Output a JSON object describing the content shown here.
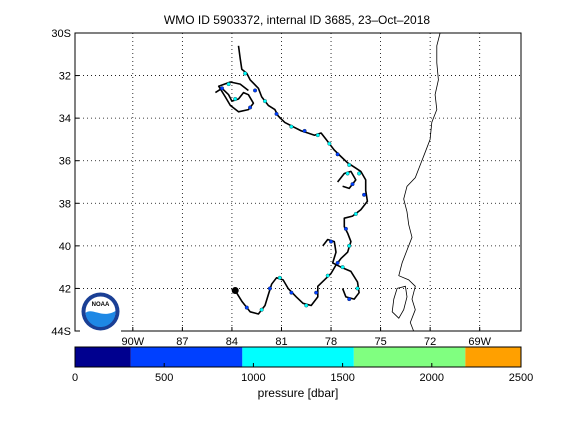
{
  "chart_data": {
    "type": "scatter",
    "title": "WMO ID 5903372, internal ID 3685, 23–Oct–2018",
    "x_range_lon": [
      -93.5,
      -66.5
    ],
    "y_range_lat": [
      -44,
      -30
    ],
    "grid": true,
    "grid_style": "dotted",
    "x_ticks": [
      {
        "value": -90,
        "label": "90W"
      },
      {
        "value": -87,
        "label": "87"
      },
      {
        "value": -84,
        "label": "84"
      },
      {
        "value": -81,
        "label": "81"
      },
      {
        "value": -78,
        "label": "78"
      },
      {
        "value": -75,
        "label": "75"
      },
      {
        "value": -72,
        "label": "72"
      },
      {
        "value": -69,
        "label": "69W"
      }
    ],
    "y_ticks": [
      {
        "value": -30,
        "label": "30S"
      },
      {
        "value": -32,
        "label": "32"
      },
      {
        "value": -34,
        "label": "34"
      },
      {
        "value": -36,
        "label": "36"
      },
      {
        "value": -38,
        "label": "38"
      },
      {
        "value": -40,
        "label": "40"
      },
      {
        "value": -42,
        "label": "42"
      },
      {
        "value": -44,
        "label": "44S"
      }
    ],
    "colorbar": {
      "label": "pressure [dbar]",
      "range": [
        0,
        2500
      ],
      "ticks": [
        0,
        500,
        1000,
        1500,
        2000,
        2500
      ],
      "bins": [
        {
          "from": 0,
          "to": 313,
          "color": "#00008f"
        },
        {
          "from": 313,
          "to": 938,
          "color": "#0040ff"
        },
        {
          "from": 938,
          "to": 1563,
          "color": "#00ffff"
        },
        {
          "from": 1563,
          "to": 2188,
          "color": "#80ff80"
        },
        {
          "from": 2188,
          "to": 2500,
          "color": "#ffa000"
        }
      ]
    },
    "series": [
      {
        "track_lon_lat": [
          [
            -83.6,
            -30.6
          ],
          [
            -83.5,
            -31.2
          ],
          [
            -83.4,
            -31.7
          ],
          [
            -83.1,
            -31.9
          ],
          [
            -82.9,
            -32.2
          ],
          [
            -82.4,
            -32.6
          ],
          [
            -82.2,
            -33.0
          ],
          [
            -81.8,
            -33.4
          ],
          [
            -81.4,
            -33.6
          ],
          [
            -81.2,
            -33.9
          ],
          [
            -80.8,
            -34.2
          ],
          [
            -80.3,
            -34.4
          ],
          [
            -79.8,
            -34.6
          ],
          [
            -79.4,
            -34.7
          ],
          [
            -79.0,
            -34.8
          ],
          [
            -78.6,
            -34.7
          ],
          [
            -78.3,
            -35.0
          ],
          [
            -78.0,
            -35.3
          ],
          [
            -77.8,
            -35.5
          ],
          [
            -77.4,
            -35.8
          ],
          [
            -77.0,
            -36.1
          ],
          [
            -76.6,
            -36.3
          ],
          [
            -76.2,
            -36.5
          ],
          [
            -75.9,
            -36.9
          ],
          [
            -75.9,
            -37.4
          ],
          [
            -75.8,
            -37.9
          ],
          [
            -76.2,
            -38.3
          ],
          [
            -76.7,
            -38.6
          ],
          [
            -77.2,
            -38.7
          ],
          [
            -77.2,
            -39.1
          ],
          [
            -77.0,
            -39.4
          ],
          [
            -76.8,
            -39.8
          ],
          [
            -77.0,
            -40.3
          ],
          [
            -77.4,
            -40.6
          ],
          [
            -77.7,
            -40.9
          ],
          [
            -78.0,
            -41.3
          ],
          [
            -78.4,
            -41.6
          ],
          [
            -78.8,
            -41.9
          ],
          [
            -78.8,
            -42.4
          ],
          [
            -79.2,
            -42.8
          ],
          [
            -79.7,
            -42.7
          ],
          [
            -80.1,
            -42.4
          ],
          [
            -80.6,
            -42.0
          ],
          [
            -80.9,
            -41.6
          ],
          [
            -81.3,
            -41.5
          ],
          [
            -81.6,
            -41.8
          ],
          [
            -81.8,
            -42.3
          ],
          [
            -82.0,
            -42.8
          ],
          [
            -82.4,
            -43.2
          ],
          [
            -82.9,
            -43.1
          ],
          [
            -83.4,
            -42.6
          ],
          [
            -83.8,
            -42.1
          ]
        ],
        "track_color": "#000000",
        "last_position": [
          -83.8,
          -42.1
        ]
      },
      {
        "track_lon_lat": [
          [
            -85.0,
            -32.8
          ],
          [
            -84.6,
            -32.6
          ],
          [
            -84.2,
            -32.9
          ],
          [
            -84.0,
            -33.2
          ],
          [
            -83.6,
            -33.1
          ],
          [
            -83.3,
            -32.8
          ],
          [
            -83.0,
            -32.9
          ],
          [
            -82.7,
            -33.3
          ],
          [
            -83.0,
            -33.6
          ],
          [
            -83.6,
            -33.7
          ],
          [
            -84.1,
            -33.4
          ],
          [
            -84.4,
            -33.0
          ],
          [
            -84.8,
            -32.5
          ],
          [
            -84.1,
            -32.3
          ],
          [
            -83.5,
            -32.4
          ],
          [
            -83.0,
            -32.7
          ]
        ],
        "track_color": "#000000"
      },
      {
        "track_lon_lat": [
          [
            -77.6,
            -37.0
          ],
          [
            -77.2,
            -36.6
          ],
          [
            -76.8,
            -36.5
          ],
          [
            -76.5,
            -36.9
          ],
          [
            -76.9,
            -37.3
          ],
          [
            -77.3,
            -37.2
          ]
        ],
        "track_color": "#000000"
      },
      {
        "track_lon_lat": [
          [
            -78.5,
            -40.0
          ],
          [
            -78.2,
            -39.7
          ],
          [
            -77.8,
            -39.8
          ],
          [
            -77.7,
            -40.3
          ],
          [
            -77.9,
            -40.8
          ],
          [
            -77.4,
            -41.0
          ],
          [
            -76.8,
            -41.2
          ],
          [
            -76.4,
            -41.7
          ],
          [
            -76.3,
            -42.2
          ],
          [
            -76.6,
            -42.5
          ],
          [
            -77.1,
            -42.4
          ],
          [
            -77.3,
            -42.0
          ]
        ],
        "track_color": "#000000"
      }
    ],
    "profile_points": [
      {
        "lon": -83.2,
        "lat": -31.9,
        "bin": 2
      },
      {
        "lon": -82.6,
        "lat": -32.7,
        "bin": 1
      },
      {
        "lon": -82.0,
        "lat": -33.2,
        "bin": 2
      },
      {
        "lon": -81.3,
        "lat": -33.8,
        "bin": 1
      },
      {
        "lon": -80.4,
        "lat": -34.4,
        "bin": 2
      },
      {
        "lon": -79.6,
        "lat": -34.6,
        "bin": 1
      },
      {
        "lon": -78.8,
        "lat": -34.8,
        "bin": 2
      },
      {
        "lon": -78.1,
        "lat": -35.2,
        "bin": 2
      },
      {
        "lon": -77.6,
        "lat": -35.7,
        "bin": 1
      },
      {
        "lon": -76.9,
        "lat": -36.2,
        "bin": 2
      },
      {
        "lon": -76.3,
        "lat": -36.6,
        "bin": 2
      },
      {
        "lon": -76.0,
        "lat": -37.6,
        "bin": 1
      },
      {
        "lon": -76.5,
        "lat": -38.5,
        "bin": 2
      },
      {
        "lon": -77.1,
        "lat": -39.2,
        "bin": 1
      },
      {
        "lon": -76.9,
        "lat": -40.0,
        "bin": 2
      },
      {
        "lon": -77.6,
        "lat": -40.8,
        "bin": 1
      },
      {
        "lon": -78.2,
        "lat": -41.4,
        "bin": 2
      },
      {
        "lon": -78.9,
        "lat": -42.2,
        "bin": 1
      },
      {
        "lon": -79.5,
        "lat": -42.8,
        "bin": 2
      },
      {
        "lon": -80.4,
        "lat": -42.2,
        "bin": 1
      },
      {
        "lon": -81.1,
        "lat": -41.5,
        "bin": 2
      },
      {
        "lon": -81.7,
        "lat": -42.0,
        "bin": 1
      },
      {
        "lon": -82.2,
        "lat": -43.0,
        "bin": 2
      },
      {
        "lon": -83.1,
        "lat": -42.9,
        "bin": 1
      },
      {
        "lon": -84.6,
        "lat": -32.6,
        "bin": 1
      },
      {
        "lon": -83.8,
        "lat": -33.1,
        "bin": 2
      },
      {
        "lon": -82.9,
        "lat": -33.5,
        "bin": 1
      },
      {
        "lon": -84.2,
        "lat": -32.4,
        "bin": 2
      },
      {
        "lon": -77.0,
        "lat": -36.6,
        "bin": 2
      },
      {
        "lon": -76.7,
        "lat": -37.1,
        "bin": 1
      },
      {
        "lon": -78.0,
        "lat": -39.8,
        "bin": 1
      },
      {
        "lon": -77.3,
        "lat": -41.0,
        "bin": 2
      },
      {
        "lon": -76.4,
        "lat": -42.0,
        "bin": 2
      },
      {
        "lon": -76.9,
        "lat": -42.5,
        "bin": 1
      }
    ],
    "map_features": {
      "coastline_lon_lat": [
        [
          -71.4,
          -30.0
        ],
        [
          -71.6,
          -30.6
        ],
        [
          -71.6,
          -31.4
        ],
        [
          -71.5,
          -32.2
        ],
        [
          -71.7,
          -32.9
        ],
        [
          -71.6,
          -33.6
        ],
        [
          -71.9,
          -34.2
        ],
        [
          -72.0,
          -35.0
        ],
        [
          -72.3,
          -35.6
        ],
        [
          -72.6,
          -36.2
        ],
        [
          -72.9,
          -36.8
        ],
        [
          -73.4,
          -37.2
        ],
        [
          -73.6,
          -37.8
        ],
        [
          -73.4,
          -38.4
        ],
        [
          -73.3,
          -39.0
        ],
        [
          -73.1,
          -39.6
        ],
        [
          -73.4,
          -40.2
        ],
        [
          -73.7,
          -40.8
        ],
        [
          -73.9,
          -41.4
        ],
        [
          -73.3,
          -41.6
        ],
        [
          -72.9,
          -41.9
        ],
        [
          -73.1,
          -42.5
        ],
        [
          -72.9,
          -43.0
        ],
        [
          -73.2,
          -43.6
        ],
        [
          -73.0,
          -44.0
        ]
      ],
      "island_lon_lat": [
        [
          -74.0,
          -42.0
        ],
        [
          -73.5,
          -41.9
        ],
        [
          -73.4,
          -42.4
        ],
        [
          -73.6,
          -43.0
        ],
        [
          -73.9,
          -43.4
        ],
        [
          -74.3,
          -43.1
        ],
        [
          -74.2,
          -42.5
        ],
        [
          -74.0,
          -42.0
        ]
      ]
    },
    "logo": {
      "text": "NOAA"
    }
  }
}
